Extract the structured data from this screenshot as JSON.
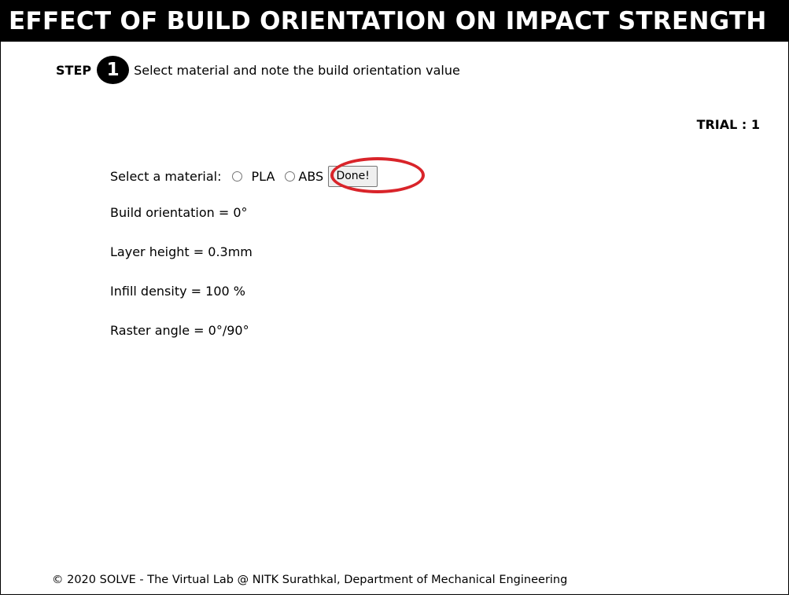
{
  "title": "EFFECT OF BUILD ORIENTATION ON IMPACT STRENGTH",
  "step": {
    "word": "STEP",
    "number": "1",
    "instruction": "Select material and note the build orientation value"
  },
  "trial": "TRIAL : 1",
  "material_select": {
    "label": "Select a material:",
    "options": [
      "PLA",
      "ABS"
    ],
    "done_label": "Done!"
  },
  "parameters": {
    "build_orientation": "Build orientation = 0°",
    "layer_height": "Layer height = 0.3mm",
    "infill_density": "Infill density = 100 %",
    "raster_angle": "Raster angle = 0°/90°"
  },
  "footer": "© 2020 SOLVE - The Virtual Lab @ NITK Surathkal, Department of Mechanical Engineering",
  "colors": {
    "title_background": "#000000",
    "highlight": "#d9242a",
    "button_background": "#efefef"
  }
}
